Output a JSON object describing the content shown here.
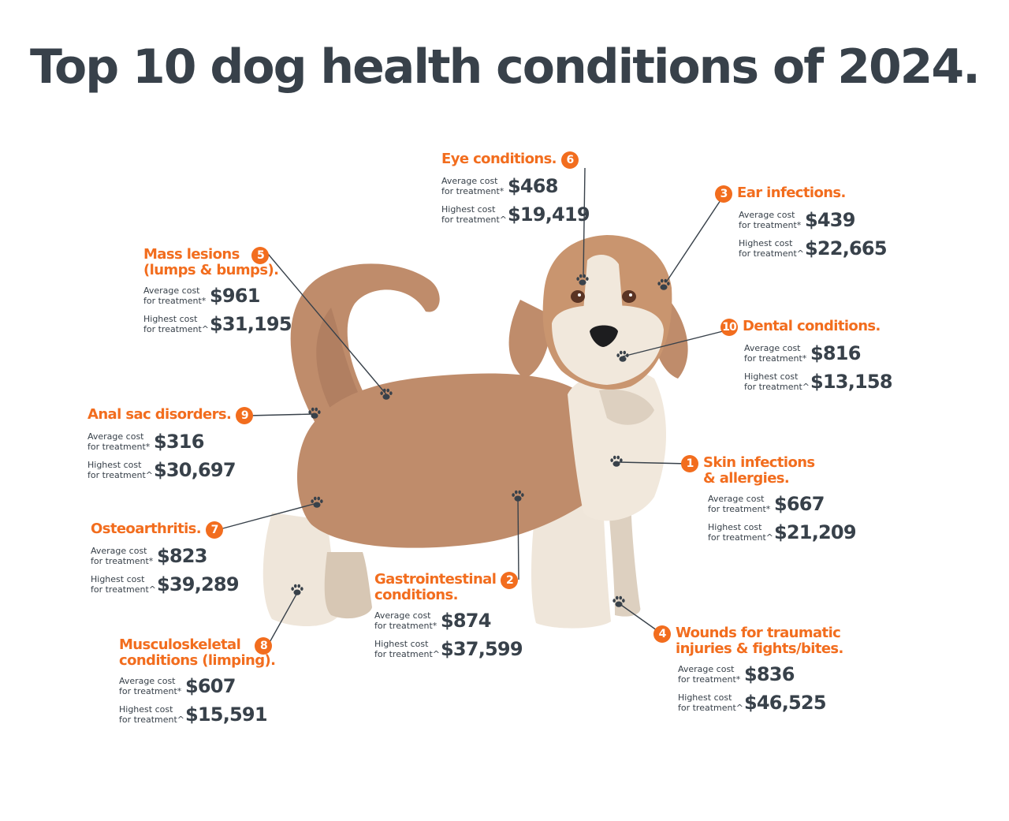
{
  "title": "Top 10 dog health conditions of 2024.",
  "labels": {
    "average": "Average cost\nfor treatment*",
    "highest": "Highest cost\nfor treatment^"
  },
  "colors": {
    "accent": "#f26d1e",
    "text": "#38414a",
    "fur_brown": "#bf8c6b",
    "fur_cream": "#f1e8dc"
  },
  "icons": {
    "marker": "paw-icon"
  },
  "conditions": [
    {
      "rank": "1",
      "name": "Skin infections\n& allergies.",
      "average": "$667",
      "highest": "$21,209"
    },
    {
      "rank": "2",
      "name": "Gastrointestinal\nconditions.",
      "average": "$874",
      "highest": "$37,599"
    },
    {
      "rank": "3",
      "name": "Ear infections.",
      "average": "$439",
      "highest": "$22,665"
    },
    {
      "rank": "4",
      "name": "Wounds for traumatic\ninjuries & fights/bites.",
      "average": "$836",
      "highest": "$46,525"
    },
    {
      "rank": "5",
      "name": "Mass lesions\n(lumps & bumps).",
      "average": "$961",
      "highest": "$31,195"
    },
    {
      "rank": "6",
      "name": "Eye conditions.",
      "average": "$468",
      "highest": "$19,419"
    },
    {
      "rank": "7",
      "name": "Osteoarthritis.",
      "average": "$823",
      "highest": "$39,289"
    },
    {
      "rank": "8",
      "name": "Musculoskeletal\nconditions (limping).",
      "average": "$607",
      "highest": "$15,591"
    },
    {
      "rank": "9",
      "name": "Anal sac disorders.",
      "average": "$316",
      "highest": "$30,697"
    },
    {
      "rank": "10",
      "name": "Dental conditions.",
      "average": "$816",
      "highest": "$13,158"
    }
  ]
}
